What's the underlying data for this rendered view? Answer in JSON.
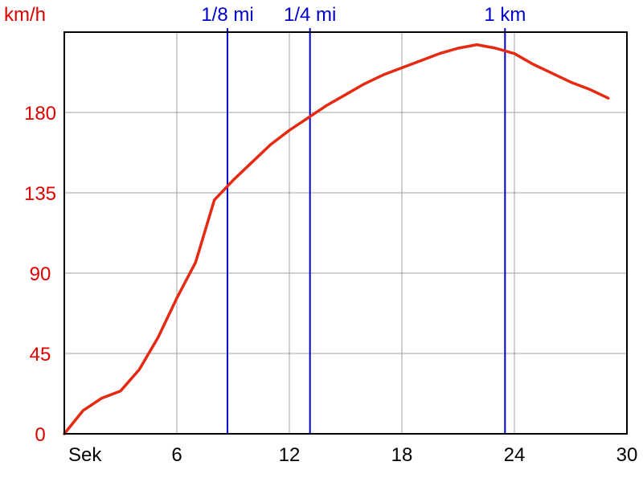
{
  "chart_data": {
    "type": "line",
    "y_unit_label": "km/h",
    "x_unit_label": "Sek",
    "xlim": [
      0,
      30
    ],
    "ylim": [
      0,
      225
    ],
    "x_ticks": [
      6,
      12,
      18,
      24,
      30
    ],
    "y_ticks": [
      0,
      45,
      90,
      135,
      180
    ],
    "grid": true,
    "colors": {
      "series": "#e62a12",
      "markers": "#0000cc",
      "y_ticks": "#e00000",
      "x_ticks": "#000000",
      "grid": "#a0a0a0"
    },
    "markers": [
      {
        "label": "1/8 mi",
        "x": 8.7
      },
      {
        "label": "1/4 mi",
        "x": 13.1
      },
      {
        "label": "1 km",
        "x": 23.5
      }
    ],
    "series": [
      {
        "x": [
          0,
          1,
          2,
          3,
          4,
          5,
          6,
          7,
          8,
          9,
          10,
          11,
          12,
          13,
          14,
          15,
          16,
          17,
          18,
          19,
          20,
          21,
          22,
          23,
          24,
          25,
          26,
          27,
          28,
          29
        ],
        "y": [
          0,
          13,
          20,
          24,
          36,
          54,
          76,
          96,
          131,
          142,
          152,
          162,
          170,
          177,
          184,
          190,
          196,
          201,
          205,
          209,
          213,
          216,
          218,
          216,
          213,
          207,
          202,
          197,
          193,
          188
        ]
      }
    ]
  }
}
